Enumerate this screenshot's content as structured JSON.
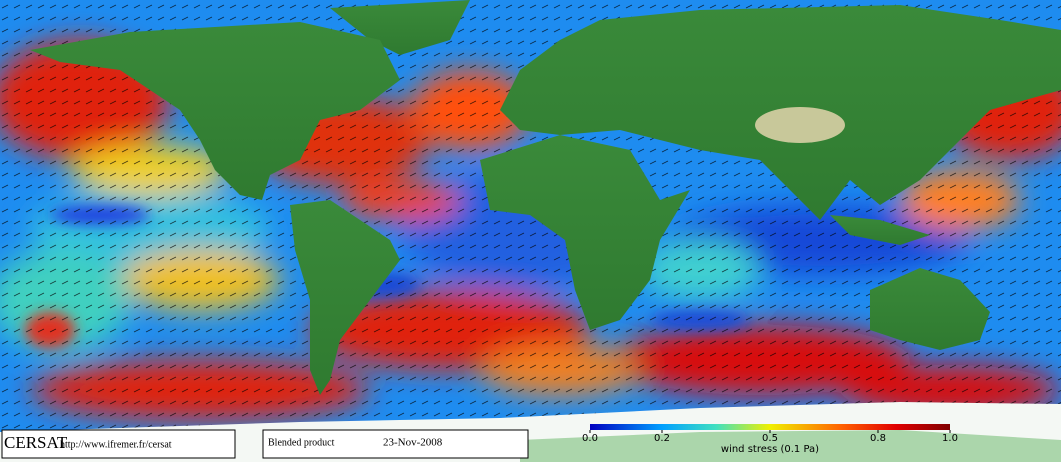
{
  "footer": {
    "logo": "CERSAT",
    "url": "http://www.ifremer.fr/cersat",
    "product": "Blended product",
    "date": "23-Nov-2008"
  },
  "colorbar": {
    "label": "wind stress (0.1 Pa)",
    "range": [
      0,
      1
    ],
    "ticks": [
      {
        "value": 0,
        "label": "0.0"
      },
      0.2,
      0.5,
      0.8,
      {
        "value": 1,
        "label": "1.0"
      }
    ]
  }
}
